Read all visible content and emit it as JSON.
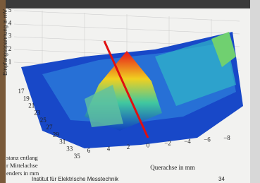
{
  "plot": {
    "z_label": "Empfangsspannung in mV",
    "z_ticks": [
      "5",
      "4",
      "3",
      "2",
      "1"
    ],
    "depth_ticks": [
      "17",
      "19",
      "21",
      "23",
      "25",
      "27",
      "29",
      "31",
      "33",
      "35"
    ],
    "x_ticks": [
      "6",
      "4",
      "2",
      "0",
      "−2",
      "−4",
      "−6",
      "−8"
    ],
    "x_label": "Querachse in mm",
    "depth_label": [
      "stanz entlang",
      "r Mittelachse",
      "enders in mm"
    ]
  },
  "footer": {
    "institute": "Institut für Elektrische Messtechnik",
    "page": "34"
  }
}
